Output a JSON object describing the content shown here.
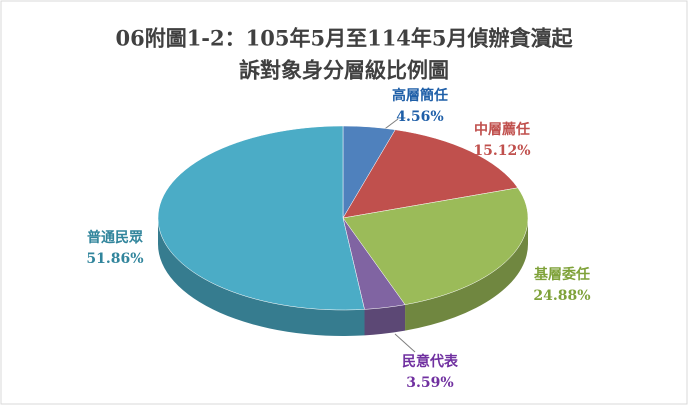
{
  "chart_data": {
    "type": "pie3d",
    "title": [
      "06附圖1-2：105年5月至114年5月偵辦貪瀆起",
      "訴對象身分層級比例圖"
    ],
    "categories": [
      "高層簡任",
      "中層薦任",
      "基層委任",
      "民意代表",
      "普通民眾"
    ],
    "values": [
      4.56,
      15.12,
      24.88,
      3.59,
      51.86
    ],
    "value_labels": [
      "4.56%",
      "15.12%",
      "24.88%",
      "3.59%",
      "51.86%"
    ],
    "colors": [
      "#4f81bd",
      "#c0504d",
      "#9bbb59",
      "#8064a2",
      "#4bacc6"
    ]
  }
}
